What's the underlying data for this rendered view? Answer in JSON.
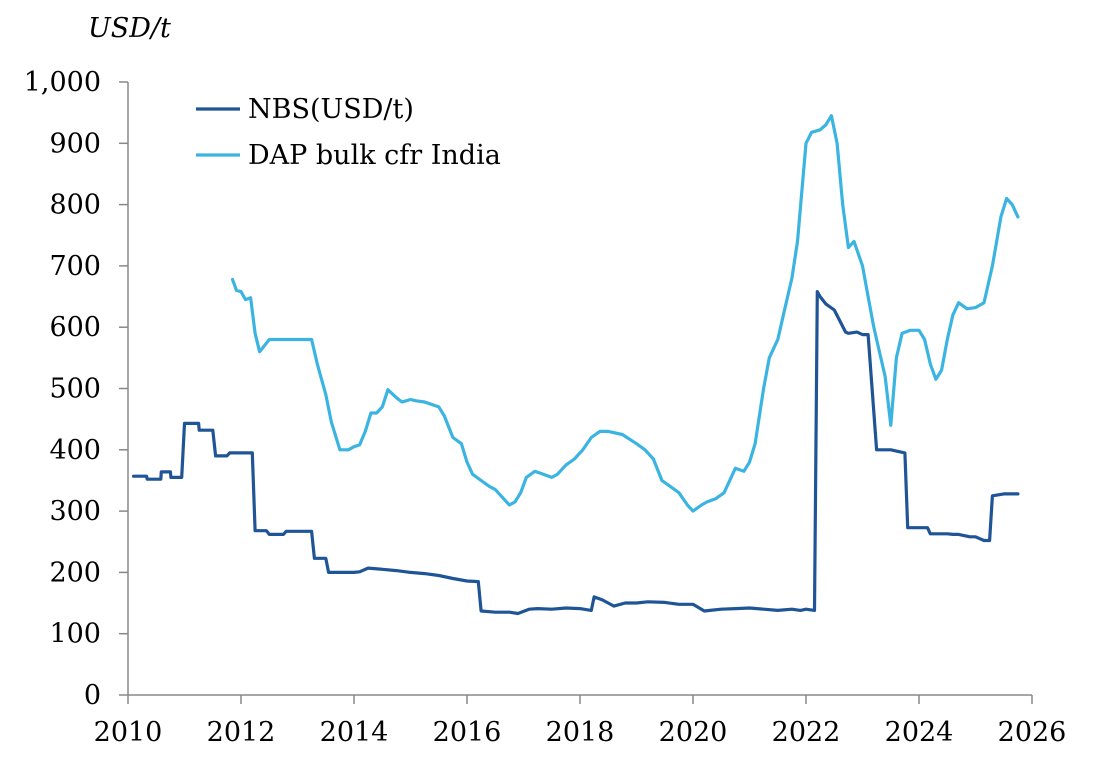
{
  "chart_data": {
    "type": "line",
    "title": "",
    "ylabel": "USD/t",
    "xlabel": "",
    "xlim": [
      2010,
      2026
    ],
    "ylim": [
      0,
      1000
    ],
    "xticks": [
      2010,
      2012,
      2014,
      2016,
      2018,
      2020,
      2022,
      2024,
      2026
    ],
    "yticks": [
      0,
      100,
      200,
      300,
      400,
      500,
      600,
      700,
      800,
      900,
      1000
    ],
    "xtick_labels": [
      "2010",
      "2012",
      "2014",
      "2016",
      "2018",
      "2020",
      "2022",
      "2024",
      "2026"
    ],
    "ytick_labels": [
      "0",
      "100",
      "200",
      "300",
      "400",
      "500",
      "600",
      "700",
      "800",
      "900",
      "1,000"
    ],
    "grid": false,
    "legend": "top-left",
    "series": [
      {
        "name": "NBS(USD/t)",
        "color": "#1f5596",
        "x": [
          2010.1,
          2010.33,
          2010.34,
          2010.58,
          2010.59,
          2010.75,
          2010.76,
          2010.9,
          2010.95,
          2011.0,
          2011.25,
          2011.26,
          2011.5,
          2011.55,
          2011.75,
          2011.8,
          2012.0,
          2012.2,
          2012.25,
          2012.45,
          2012.5,
          2012.75,
          2012.8,
          2013.0,
          2013.25,
          2013.3,
          2013.4,
          2013.5,
          2013.55,
          2013.75,
          2014.0,
          2014.1,
          2014.25,
          2014.5,
          2014.75,
          2015.0,
          2015.25,
          2015.5,
          2015.75,
          2016.0,
          2016.2,
          2016.25,
          2016.5,
          2016.75,
          2016.9,
          2017.1,
          2017.25,
          2017.5,
          2017.75,
          2018.0,
          2018.2,
          2018.25,
          2018.4,
          2018.6,
          2018.8,
          2019.0,
          2019.2,
          2019.5,
          2019.75,
          2020.0,
          2020.2,
          2020.3,
          2020.5,
          2020.75,
          2021.0,
          2021.25,
          2021.5,
          2021.75,
          2021.9,
          2022.0,
          2022.15,
          2022.2,
          2022.25,
          2022.35,
          2022.5,
          2022.7,
          2022.75,
          2022.9,
          2023.0,
          2023.1,
          2023.25,
          2023.26,
          2023.5,
          2023.75,
          2023.8,
          2023.85,
          2024.0,
          2024.15,
          2024.2,
          2024.25,
          2024.5,
          2024.6,
          2024.7,
          2024.9,
          2025.0,
          2025.15,
          2025.25,
          2025.3,
          2025.5,
          2025.75
        ],
        "values": [
          357,
          357,
          352,
          352,
          364,
          364,
          355,
          355,
          355,
          443,
          443,
          432,
          432,
          390,
          390,
          395,
          395,
          395,
          268,
          268,
          262,
          262,
          267,
          267,
          267,
          223,
          223,
          223,
          200,
          200,
          200,
          201,
          207,
          205,
          203,
          200,
          198,
          195,
          190,
          186,
          185,
          137,
          135,
          135,
          133,
          140,
          141,
          140,
          142,
          141,
          138,
          160,
          155,
          145,
          150,
          150,
          152,
          151,
          148,
          148,
          137,
          138,
          140,
          141,
          142,
          140,
          138,
          140,
          138,
          140,
          138,
          658,
          650,
          638,
          628,
          592,
          590,
          592,
          588,
          588,
          400,
          400,
          400,
          395,
          273,
          273,
          273,
          273,
          263,
          263,
          263,
          262,
          262,
          258,
          258,
          252,
          252,
          325,
          328,
          328
        ]
      },
      {
        "name": "DAP bulk cfr India",
        "color": "#3bb4e2",
        "x": [
          2011.85,
          2011.92,
          2012.0,
          2012.08,
          2012.17,
          2012.25,
          2012.33,
          2012.5,
          2012.75,
          2013.0,
          2013.25,
          2013.35,
          2013.5,
          2013.6,
          2013.75,
          2013.9,
          2014.0,
          2014.1,
          2014.2,
          2014.3,
          2014.4,
          2014.5,
          2014.6,
          2014.75,
          2014.85,
          2015.0,
          2015.1,
          2015.25,
          2015.5,
          2015.6,
          2015.75,
          2015.9,
          2016.0,
          2016.1,
          2016.25,
          2016.4,
          2016.5,
          2016.65,
          2016.75,
          2016.85,
          2016.95,
          2017.05,
          2017.2,
          2017.35,
          2017.5,
          2017.6,
          2017.75,
          2017.9,
          2018.05,
          2018.2,
          2018.35,
          2018.5,
          2018.75,
          2019.0,
          2019.15,
          2019.3,
          2019.45,
          2019.6,
          2019.75,
          2019.9,
          2020.0,
          2020.15,
          2020.25,
          2020.4,
          2020.55,
          2020.75,
          2020.9,
          2021.0,
          2021.1,
          2021.25,
          2021.35,
          2021.5,
          2021.6,
          2021.75,
          2021.85,
          2022.0,
          2022.1,
          2022.25,
          2022.35,
          2022.45,
          2022.55,
          2022.65,
          2022.75,
          2022.85,
          2023.0,
          2023.1,
          2023.2,
          2023.3,
          2023.4,
          2023.5,
          2023.6,
          2023.7,
          2023.85,
          2024.0,
          2024.1,
          2024.2,
          2024.3,
          2024.4,
          2024.5,
          2024.6,
          2024.7,
          2024.85,
          2025.0,
          2025.15,
          2025.3,
          2025.45,
          2025.55,
          2025.65,
          2025.75
        ],
        "values": [
          678,
          660,
          658,
          645,
          648,
          590,
          560,
          580,
          580,
          580,
          580,
          540,
          490,
          445,
          400,
          400,
          405,
          408,
          430,
          460,
          460,
          470,
          498,
          485,
          478,
          482,
          480,
          478,
          470,
          455,
          420,
          410,
          380,
          360,
          350,
          340,
          335,
          320,
          310,
          315,
          330,
          355,
          365,
          360,
          355,
          360,
          375,
          385,
          400,
          420,
          430,
          430,
          425,
          410,
          400,
          385,
          350,
          340,
          330,
          310,
          300,
          310,
          315,
          320,
          330,
          370,
          365,
          380,
          410,
          500,
          550,
          580,
          620,
          680,
          740,
          900,
          918,
          922,
          930,
          945,
          900,
          800,
          730,
          740,
          700,
          650,
          600,
          560,
          520,
          440,
          550,
          590,
          595,
          595,
          580,
          540,
          515,
          530,
          580,
          620,
          640,
          630,
          632,
          640,
          700,
          780,
          810,
          800,
          780
        ]
      }
    ]
  }
}
